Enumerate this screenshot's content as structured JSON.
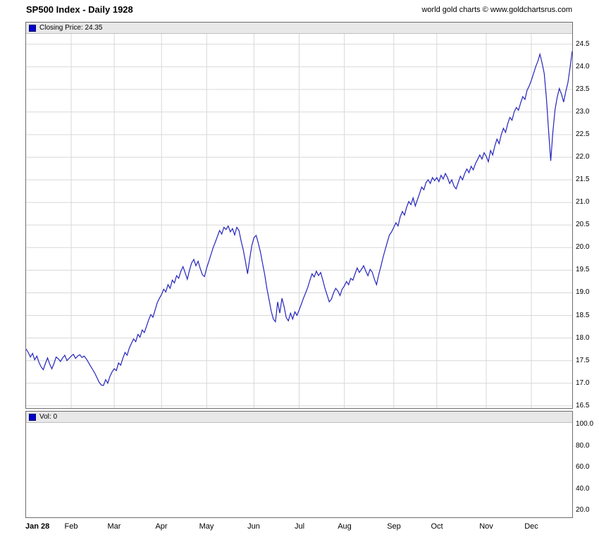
{
  "header": {
    "title": "SP500 Index - Daily 1928",
    "copyright": "world gold charts © www.goldchartsrus.com"
  },
  "price_panel": {
    "legend_label": "Closing Price: 24.35",
    "y_tick_labels": [
      "24.5",
      "24.0",
      "23.5",
      "23.0",
      "22.5",
      "22.0",
      "21.5",
      "21.0",
      "20.5",
      "20.0",
      "19.5",
      "19.0",
      "18.5",
      "18.0",
      "17.5",
      "17.0",
      "16.5"
    ]
  },
  "volume_panel": {
    "legend_label": "Vol: 0",
    "y_tick_labels": [
      "100.0",
      "80.0",
      "60.0",
      "40.0",
      "20.0"
    ]
  },
  "colors": {
    "line": "#2424bd",
    "legend_swatch": "#0000cc",
    "grid": "#d8d8d8",
    "panel_border": "#6e6e6e",
    "legend_bg": "#e8e8e8"
  },
  "chart_data": {
    "type": "line",
    "title": "SP500 Index - Daily 1928",
    "ylabel": "Closing Price",
    "ylim": [
      16.5,
      24.5
    ],
    "y_tick_step": 0.5,
    "last_close": 24.35,
    "grid": true,
    "legend_position": "top-left",
    "volume": {
      "label": "Vol",
      "value": 0,
      "y_ticks": [
        100.0,
        80.0,
        60.0,
        40.0,
        20.0
      ]
    },
    "x_ticks": [
      {
        "label": "Jan 28",
        "index": 0,
        "bold": true
      },
      {
        "label": "Feb",
        "index": 21
      },
      {
        "label": "Mar",
        "index": 41
      },
      {
        "label": "Apr",
        "index": 63
      },
      {
        "label": "May",
        "index": 84
      },
      {
        "label": "Jun",
        "index": 106
      },
      {
        "label": "Jul",
        "index": 127
      },
      {
        "label": "Aug",
        "index": 148
      },
      {
        "label": "Sep",
        "index": 171
      },
      {
        "label": "Oct",
        "index": 191
      },
      {
        "label": "Nov",
        "index": 214
      },
      {
        "label": "Dec",
        "index": 235
      }
    ],
    "series": [
      {
        "name": "Closing Price",
        "color": "#2424bd",
        "values": [
          17.76,
          17.68,
          17.58,
          17.66,
          17.52,
          17.6,
          17.46,
          17.36,
          17.3,
          17.44,
          17.56,
          17.42,
          17.32,
          17.44,
          17.58,
          17.54,
          17.48,
          17.56,
          17.62,
          17.5,
          17.55,
          17.6,
          17.64,
          17.55,
          17.6,
          17.63,
          17.57,
          17.6,
          17.54,
          17.46,
          17.38,
          17.3,
          17.22,
          17.12,
          17.02,
          16.96,
          16.95,
          17.08,
          17.0,
          17.15,
          17.25,
          17.32,
          17.28,
          17.45,
          17.4,
          17.55,
          17.68,
          17.62,
          17.78,
          17.88,
          17.98,
          17.92,
          18.08,
          18.02,
          18.18,
          18.12,
          18.26,
          18.4,
          18.52,
          18.46,
          18.62,
          18.78,
          18.88,
          18.96,
          19.08,
          19.02,
          19.18,
          19.1,
          19.28,
          19.22,
          19.38,
          19.32,
          19.48,
          19.58,
          19.44,
          19.3,
          19.5,
          19.66,
          19.74,
          19.6,
          19.7,
          19.54,
          19.4,
          19.36,
          19.55,
          19.7,
          19.85,
          20.0,
          20.12,
          20.25,
          20.38,
          20.3,
          20.45,
          20.4,
          20.48,
          20.35,
          20.42,
          20.28,
          20.45,
          20.38,
          20.15,
          19.95,
          19.7,
          19.42,
          19.75,
          20.05,
          20.22,
          20.27,
          20.1,
          19.9,
          19.65,
          19.4,
          19.1,
          18.85,
          18.6,
          18.42,
          18.36,
          18.8,
          18.55,
          18.88,
          18.7,
          18.45,
          18.38,
          18.55,
          18.42,
          18.58,
          18.5,
          18.62,
          18.75,
          18.88,
          19.0,
          19.12,
          19.28,
          19.42,
          19.35,
          19.48,
          19.38,
          19.45,
          19.28,
          19.1,
          18.95,
          18.8,
          18.86,
          19.0,
          19.1,
          19.04,
          18.94,
          19.08,
          19.15,
          19.25,
          19.18,
          19.32,
          19.28,
          19.42,
          19.55,
          19.45,
          19.52,
          19.6,
          19.48,
          19.38,
          19.52,
          19.46,
          19.3,
          19.18,
          19.4,
          19.58,
          19.78,
          19.95,
          20.12,
          20.28,
          20.35,
          20.45,
          20.55,
          20.48,
          20.68,
          20.8,
          20.72,
          20.9,
          21.02,
          20.95,
          21.1,
          20.92,
          21.06,
          21.2,
          21.34,
          21.28,
          21.44,
          21.5,
          21.42,
          21.55,
          21.48,
          21.55,
          21.46,
          21.6,
          21.52,
          21.64,
          21.55,
          21.42,
          21.5,
          21.36,
          21.3,
          21.44,
          21.58,
          21.5,
          21.64,
          21.74,
          21.66,
          21.8,
          21.72,
          21.86,
          21.95,
          22.05,
          21.96,
          22.1,
          22.02,
          21.9,
          22.15,
          22.05,
          22.25,
          22.4,
          22.3,
          22.5,
          22.64,
          22.55,
          22.74,
          22.88,
          22.82,
          23.0,
          23.1,
          23.04,
          23.2,
          23.34,
          23.28,
          23.48,
          23.58,
          23.7,
          23.85,
          24.0,
          24.12,
          24.28,
          24.08,
          23.85,
          23.3,
          22.6,
          21.92,
          22.55,
          23.05,
          23.32,
          23.52,
          23.4,
          23.22,
          23.45,
          23.65,
          23.98,
          24.35
        ]
      }
    ]
  }
}
